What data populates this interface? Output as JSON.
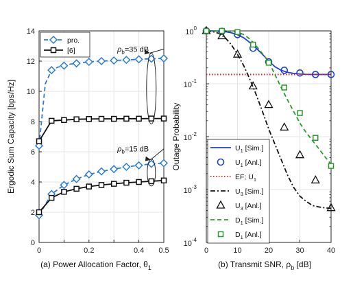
{
  "chart_data": [
    {
      "type": "line",
      "xlabel": "(a) Power Allocation Factor, θ",
      "xlabel_sub": "1",
      "ylabel": "Ergodic Sum Capacity [bps/Hz]",
      "xlim": [
        0,
        0.5
      ],
      "ylim": [
        0,
        14
      ],
      "xticks": [
        0,
        0.1,
        0.2,
        0.3,
        0.4,
        0.5
      ],
      "xtick_labels": [
        "0",
        "",
        "0.2",
        "",
        "0.4",
        "0.5"
      ],
      "yticks": [
        0,
        2,
        4,
        6,
        8,
        10,
        12,
        14
      ],
      "grid": true,
      "legend": {
        "position": "top-left",
        "entries": [
          "pro.",
          "[6]"
        ]
      },
      "annotations": [
        {
          "text_main": "ρ",
          "text_sub": "b",
          "text_rest": "=35 dB"
        },
        {
          "text_main": "ρ",
          "text_sub": "b",
          "text_rest": "=15 dB"
        }
      ],
      "series": [
        {
          "name": "pro.",
          "group": "ρb=35 dB",
          "color": "#2b7bd1",
          "style": "dashed",
          "marker": "diamond",
          "x": [
            0,
            0.025,
            0.05,
            0.075,
            0.1,
            0.125,
            0.15,
            0.175,
            0.2,
            0.225,
            0.25,
            0.275,
            0.3,
            0.325,
            0.35,
            0.375,
            0.4,
            0.425,
            0.45,
            0.475,
            0.5
          ],
          "y": [
            6.4,
            10.5,
            11.4,
            11.6,
            11.7,
            11.8,
            11.85,
            11.9,
            11.95,
            11.98,
            12.0,
            12.02,
            12.04,
            12.06,
            12.08,
            12.1,
            12.12,
            12.14,
            12.16,
            12.17,
            12.18
          ],
          "marker_x": [
            0,
            0.05,
            0.1,
            0.15,
            0.2,
            0.25,
            0.3,
            0.35,
            0.4,
            0.45,
            0.5
          ]
        },
        {
          "name": "[6]",
          "group": "ρb=35 dB",
          "color": "#111111",
          "style": "solid",
          "marker": "square",
          "x": [
            0,
            0.05,
            0.1,
            0.15,
            0.2,
            0.25,
            0.3,
            0.35,
            0.4,
            0.45,
            0.5
          ],
          "y": [
            6.7,
            8.05,
            8.1,
            8.15,
            8.17,
            8.18,
            8.18,
            8.19,
            8.19,
            8.2,
            8.2
          ]
        },
        {
          "name": "pro.",
          "group": "ρb=15 dB",
          "color": "#2b7bd1",
          "style": "dashed",
          "marker": "diamond",
          "x": [
            0,
            0.05,
            0.1,
            0.15,
            0.2,
            0.25,
            0.3,
            0.35,
            0.4,
            0.45,
            0.5
          ],
          "y": [
            1.8,
            3.2,
            3.8,
            4.2,
            4.5,
            4.7,
            4.85,
            5.0,
            5.1,
            5.2,
            5.25
          ]
        },
        {
          "name": "[6]",
          "group": "ρb=15 dB",
          "color": "#111111",
          "style": "solid",
          "marker": "square",
          "x": [
            0,
            0.05,
            0.1,
            0.15,
            0.2,
            0.25,
            0.3,
            0.35,
            0.4,
            0.45,
            0.5
          ],
          "y": [
            2.0,
            2.95,
            3.35,
            3.55,
            3.7,
            3.8,
            3.88,
            3.95,
            4.0,
            4.05,
            4.1
          ]
        }
      ]
    },
    {
      "type": "line",
      "xlabel": "(b) Transmit SNR, ρ",
      "xlabel_sub": "b",
      "xlabel_rest": " [dB]",
      "ylabel": "Outage Probability",
      "xlim": [
        0,
        40
      ],
      "ylim": [
        0.0001,
        1
      ],
      "yscale": "log",
      "xticks": [
        0,
        10,
        20,
        30,
        40
      ],
      "yticks": [
        0.0001,
        0.001,
        0.01,
        0.1,
        1
      ],
      "ytick_labels": [
        {
          "b": "10",
          "e": "-4"
        },
        {
          "b": "10",
          "e": "-3"
        },
        {
          "b": "10",
          "e": "-2"
        },
        {
          "b": "10",
          "e": "-1"
        },
        {
          "b": "10",
          "e": "0"
        }
      ],
      "grid": true,
      "legend": {
        "position": "bottom-left"
      },
      "series": [
        {
          "name": "U",
          "sub": "1",
          "tag": " [Sim.]",
          "color": "#1f3fd6",
          "style": "solid",
          "marker": "none",
          "x": [
            0,
            2,
            4,
            6,
            8,
            10,
            12,
            14,
            16,
            18,
            20,
            22,
            24,
            26,
            28,
            30,
            32,
            34,
            36,
            38,
            40
          ],
          "y": [
            1.0,
            1.0,
            0.99,
            0.97,
            0.92,
            0.85,
            0.74,
            0.6,
            0.47,
            0.36,
            0.27,
            0.21,
            0.18,
            0.165,
            0.157,
            0.153,
            0.151,
            0.15,
            0.15,
            0.15,
            0.15
          ]
        },
        {
          "name": "U",
          "sub": "1",
          "tag": " [Anl.]",
          "color": "#1f3fd6",
          "style": "none",
          "marker": "circle",
          "x": [
            0,
            5,
            10,
            15,
            20,
            25,
            30,
            35,
            40
          ],
          "y": [
            1.0,
            0.98,
            0.85,
            0.47,
            0.26,
            0.18,
            0.16,
            0.15,
            0.15
          ]
        },
        {
          "name": "EF; U",
          "sub": "1",
          "tag": "",
          "color": "#e02020",
          "style": "dotted",
          "marker": "none",
          "x": [
            0,
            40
          ],
          "y": [
            0.15,
            0.15
          ]
        },
        {
          "name": "U",
          "sub": "3",
          "tag": " [Sim.]",
          "color": "#111111",
          "style": "dashdot",
          "marker": "none",
          "x": [
            0,
            2,
            4,
            6,
            8,
            10,
            12,
            14,
            16,
            18,
            20,
            22,
            24,
            26,
            28,
            30,
            32,
            34,
            36,
            38,
            40
          ],
          "y": [
            1.0,
            0.97,
            0.9,
            0.75,
            0.55,
            0.36,
            0.22,
            0.12,
            0.062,
            0.03,
            0.014,
            0.0072,
            0.0037,
            0.0019,
            0.0011,
            0.00075,
            0.0006,
            0.0005,
            0.00047,
            0.00045,
            0.00044
          ]
        },
        {
          "name": "U",
          "sub": "3",
          "tag": " [Anl.]",
          "color": "#111111",
          "style": "none",
          "marker": "triangle",
          "x": [
            0,
            5,
            10,
            15,
            20,
            25,
            30,
            35,
            40
          ],
          "y": [
            1.0,
            0.8,
            0.36,
            0.09,
            0.04,
            0.015,
            0.0045,
            0.0015,
            0.00045
          ]
        },
        {
          "name": "D",
          "sub": "1",
          "tag": " [Sim.]",
          "color": "#2a9a2a",
          "style": "dashed",
          "marker": "none",
          "x": [
            0,
            2,
            4,
            6,
            8,
            10,
            12,
            14,
            16,
            18,
            20,
            22,
            24,
            26,
            28,
            30,
            32,
            34,
            36,
            38,
            40
          ],
          "y": [
            1.0,
            1.0,
            1.0,
            0.99,
            0.98,
            0.95,
            0.85,
            0.7,
            0.52,
            0.37,
            0.26,
            0.15,
            0.085,
            0.05,
            0.03,
            0.018,
            0.012,
            0.0085,
            0.006,
            0.0042,
            0.003
          ]
        },
        {
          "name": "D",
          "sub": "1",
          "tag": " [Anl.]",
          "color": "#2a9a2a",
          "style": "none",
          "marker": "square",
          "x": [
            0,
            5,
            10,
            15,
            20,
            25,
            30,
            35,
            40
          ],
          "y": [
            1.0,
            1.0,
            0.95,
            0.55,
            0.25,
            0.085,
            0.028,
            0.0095,
            0.0028
          ]
        }
      ]
    }
  ]
}
